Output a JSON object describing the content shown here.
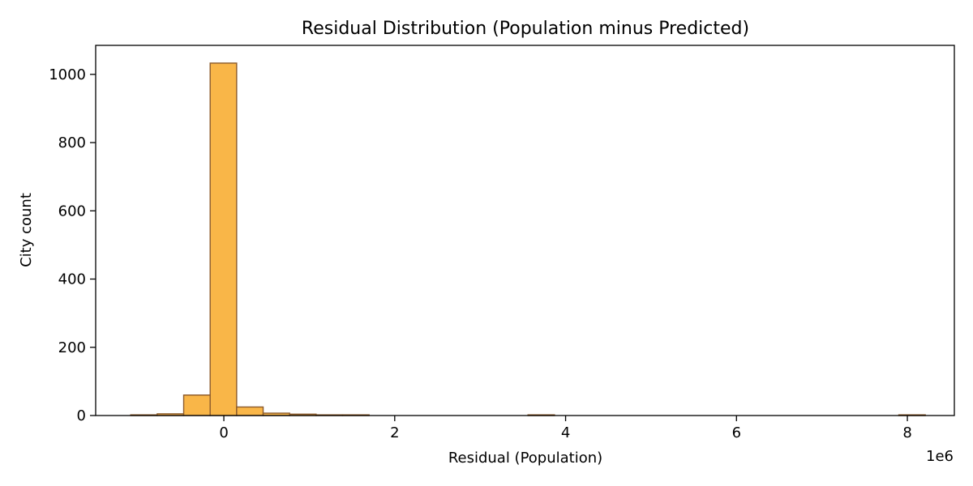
{
  "chart_data": {
    "type": "bar",
    "title": "Residual Distribution (Population minus Predicted)",
    "xlabel": "Residual (Population)",
    "ylabel": "City count",
    "x_offset_label": "1e6",
    "xlim": [
      -1.5,
      8.55
    ],
    "ylim": [
      0,
      1085
    ],
    "xticks": [
      {
        "value": 0,
        "label": "0"
      },
      {
        "value": 2,
        "label": "2"
      },
      {
        "value": 4,
        "label": "4"
      },
      {
        "value": 6,
        "label": "6"
      },
      {
        "value": 8,
        "label": "8"
      }
    ],
    "yticks": [
      {
        "value": 0,
        "label": "0"
      },
      {
        "value": 200,
        "label": "200"
      },
      {
        "value": 400,
        "label": "400"
      },
      {
        "value": 600,
        "label": "600"
      },
      {
        "value": 800,
        "label": "800"
      },
      {
        "value": 1000,
        "label": "1000"
      }
    ],
    "bin_start": -1.09,
    "bin_width": 0.31,
    "counts": [
      2,
      5,
      60,
      1033,
      25,
      7,
      4,
      2,
      2,
      0,
      0,
      0,
      0,
      0,
      0,
      2,
      0,
      0,
      0,
      0,
      0,
      0,
      0,
      0,
      0,
      0,
      0,
      0,
      0,
      2
    ],
    "bar_color": "#f9b648",
    "edge_color": "#8b5a2b",
    "grid": false,
    "legend": "none"
  }
}
